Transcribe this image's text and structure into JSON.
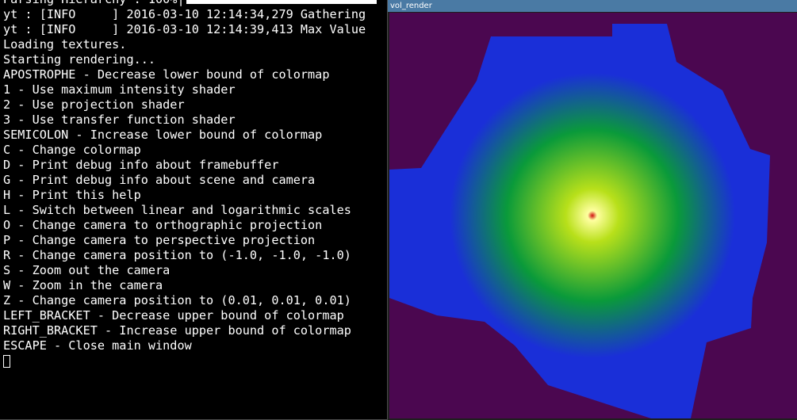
{
  "terminal": {
    "lines": [
      {
        "text": "Parsing Hierarchy : 100%|",
        "progress": true
      },
      {
        "text": "yt : [INFO     ] 2016-03-10 12:14:34,279 Gathering"
      },
      {
        "text": "yt : [INFO     ] 2016-03-10 12:14:39,413 Max Value"
      },
      {
        "text": "Loading textures."
      },
      {
        "text": "Starting rendering..."
      },
      {
        "text": "APOSTROPHE - Decrease lower bound of colormap"
      },
      {
        "text": "1 - Use maximum intensity shader"
      },
      {
        "text": "2 - Use projection shader"
      },
      {
        "text": "3 - Use transfer function shader"
      },
      {
        "text": "SEMICOLON - Increase lower bound of colormap"
      },
      {
        "text": "C - Change colormap"
      },
      {
        "text": "D - Print debug info about framebuffer"
      },
      {
        "text": "G - Print debug info about scene and camera"
      },
      {
        "text": "H - Print this help"
      },
      {
        "text": "L - Switch between linear and logarithmic scales"
      },
      {
        "text": "O - Change camera to orthographic projection"
      },
      {
        "text": "P - Change camera to perspective projection"
      },
      {
        "text": "R - Change camera position to (-1.0, -1.0, -1.0)"
      },
      {
        "text": "S - Zoom out the camera"
      },
      {
        "text": "W - Zoom in the camera"
      },
      {
        "text": "Z - Change camera position to (0.01, 0.01, 0.01)"
      },
      {
        "text": "LEFT_BRACKET - Decrease upper bound of colormap"
      },
      {
        "text": "RIGHT_BRACKET - Increase upper bound of colormap"
      },
      {
        "text": "ESCAPE - Close main window"
      }
    ]
  },
  "render_window": {
    "title": "vol_render"
  },
  "colors": {
    "background": "#4b0750",
    "outer": "#1a2fd8",
    "mid": "#0a9a3a",
    "inner": "#b8e01a",
    "core": "#ffffa0",
    "peak": "#d01010"
  }
}
